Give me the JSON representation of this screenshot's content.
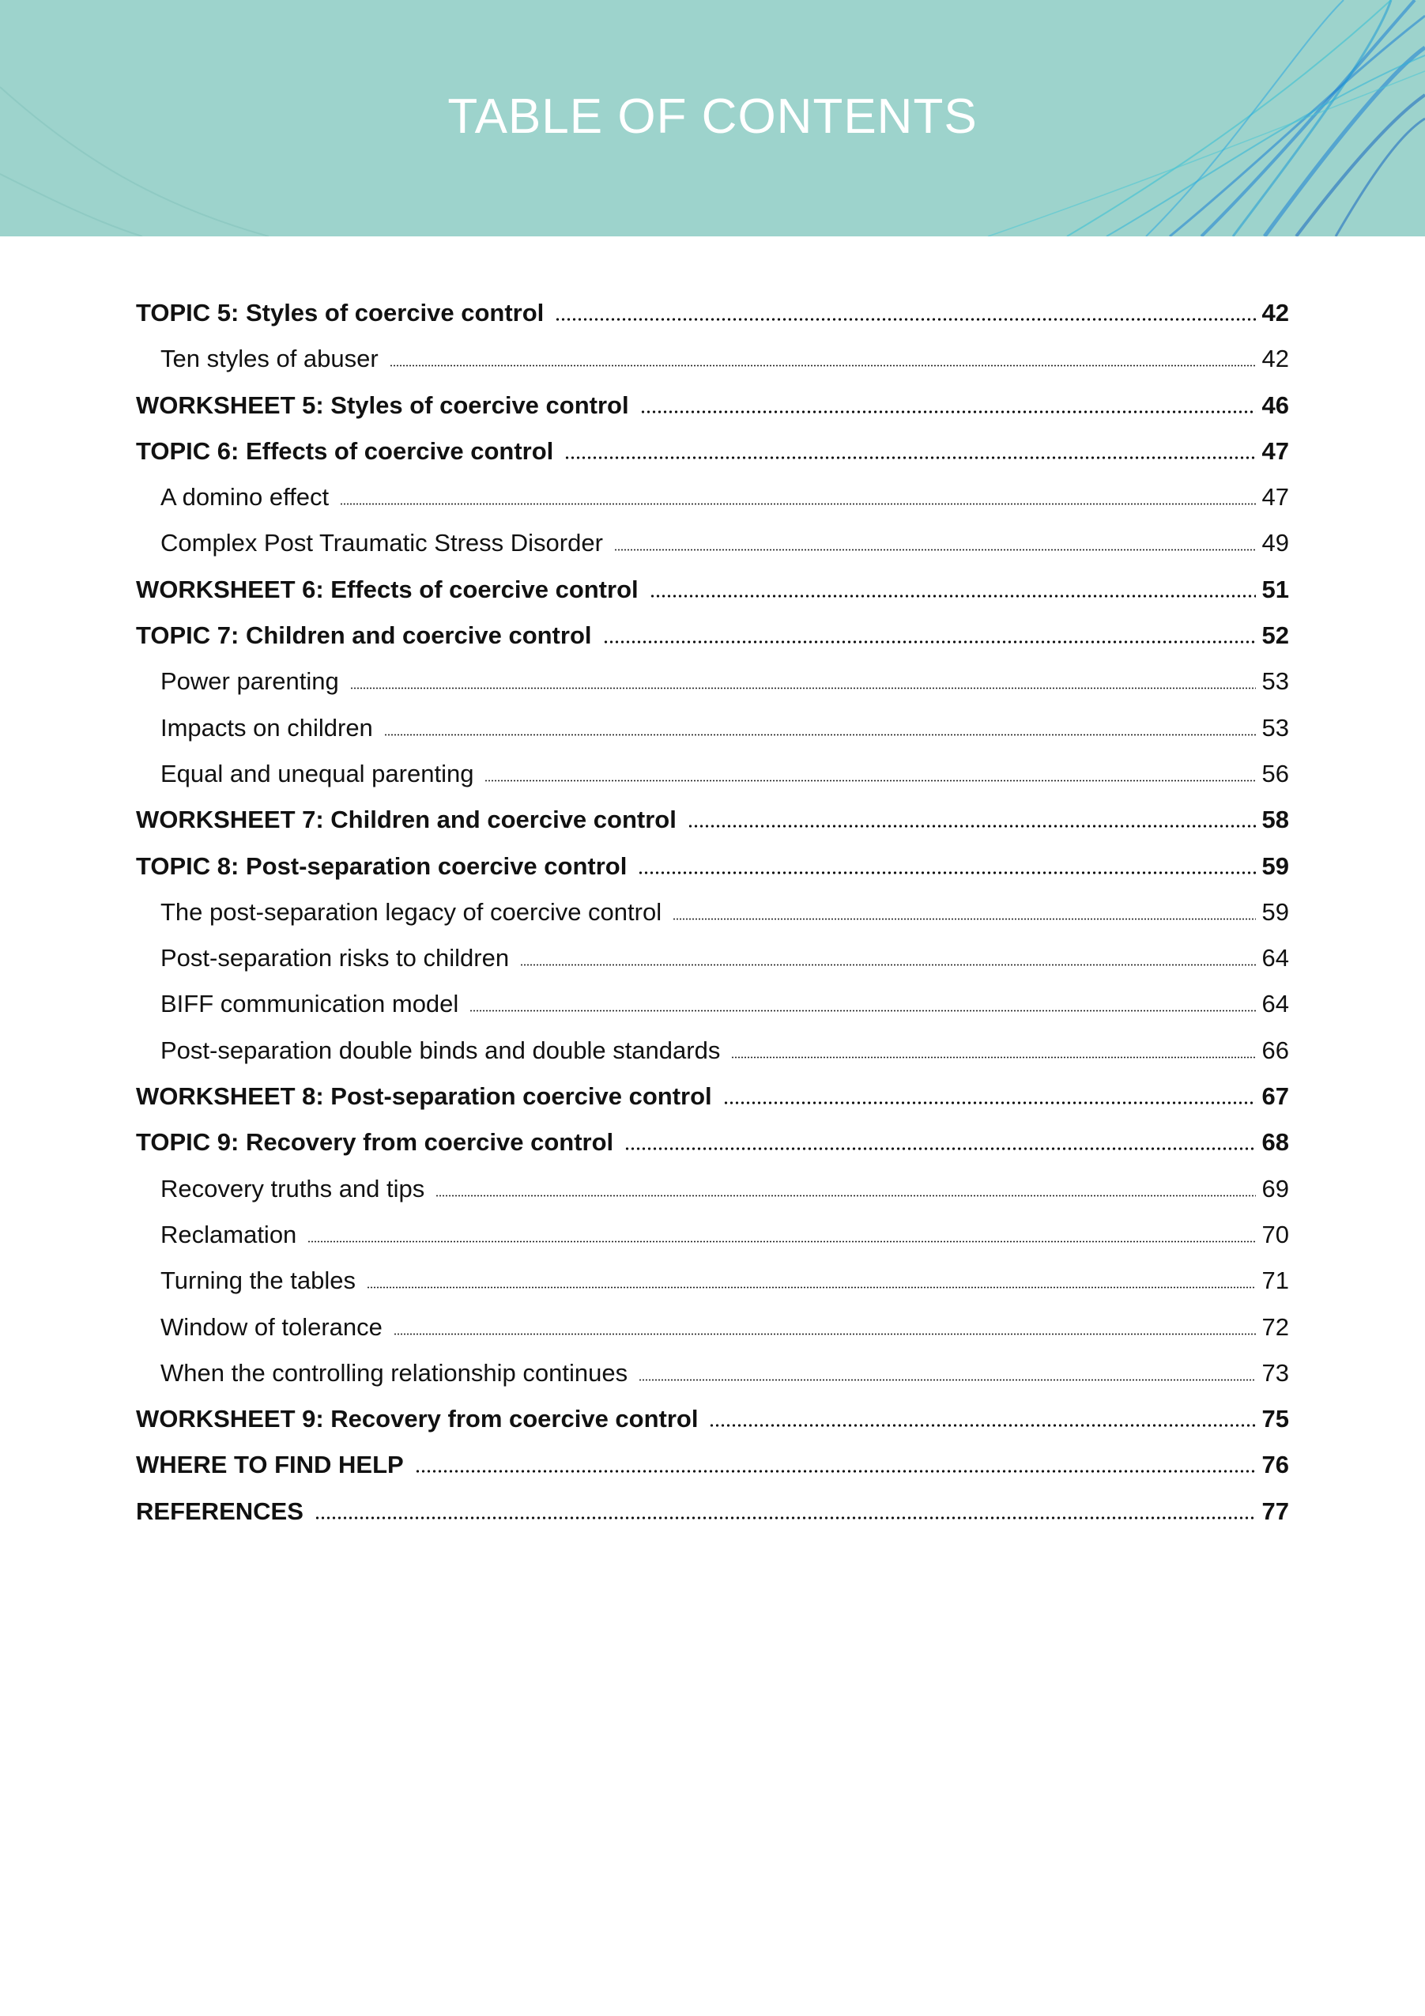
{
  "header": {
    "title": "TABLE OF CONTENTS",
    "background_color": "#9dd3cc",
    "accent_color": "#1a7fd4"
  },
  "entries": [
    {
      "label": "TOPIC 5: Styles of coercive control",
      "page": "42",
      "level": "main"
    },
    {
      "label": "Ten styles of abuser",
      "page": "42",
      "level": "sub"
    },
    {
      "label": "WORKSHEET 5: Styles of coercive control",
      "page": "46",
      "level": "main"
    },
    {
      "label": "TOPIC 6: Effects of coercive control",
      "page": "47",
      "level": "main"
    },
    {
      "label": "A domino effect",
      "page": "47",
      "level": "sub"
    },
    {
      "label": "Complex Post Traumatic Stress Disorder",
      "page": "49",
      "level": "sub"
    },
    {
      "label": "WORKSHEET 6: Effects of coercive control",
      "page": "51",
      "level": "main"
    },
    {
      "label": "TOPIC 7: Children and coercive control",
      "page": "52",
      "level": "main"
    },
    {
      "label": "Power parenting",
      "page": "53",
      "level": "sub"
    },
    {
      "label": "Impacts on children",
      "page": "53",
      "level": "sub"
    },
    {
      "label": "Equal and unequal parenting",
      "page": "56",
      "level": "sub"
    },
    {
      "label": "WORKSHEET 7: Children and coercive control",
      "page": "58",
      "level": "main"
    },
    {
      "label": "TOPIC 8: Post-separation coercive control",
      "page": "59",
      "level": "main"
    },
    {
      "label": "The post-separation legacy of coercive control",
      "page": "59",
      "level": "sub"
    },
    {
      "label": "Post-separation risks to children",
      "page": "64",
      "level": "sub"
    },
    {
      "label": "BIFF communication model",
      "page": "64",
      "level": "sub"
    },
    {
      "label": "Post-separation double binds and double standards",
      "page": "66",
      "level": "sub"
    },
    {
      "label": "WORKSHEET 8: Post-separation coercive control",
      "page": "67",
      "level": "main"
    },
    {
      "label": "TOPIC 9: Recovery from coercive control",
      "page": "68",
      "level": "main"
    },
    {
      "label": "Recovery truths and tips",
      "page": "69",
      "level": "sub"
    },
    {
      "label": "Reclamation",
      "page": "70",
      "level": "sub"
    },
    {
      "label": "Turning the tables",
      "page": "71",
      "level": "sub"
    },
    {
      "label": "Window of tolerance",
      "page": "72",
      "level": "sub"
    },
    {
      "label": "When the controlling relationship continues",
      "page": "73",
      "level": "sub"
    },
    {
      "label": "WORKSHEET 9: Recovery from coercive control",
      "page": "75",
      "level": "main"
    },
    {
      "label": "WHERE TO FIND HELP",
      "page": "76",
      "level": "main"
    },
    {
      "label": "REFERENCES",
      "page": "77",
      "level": "main"
    }
  ]
}
